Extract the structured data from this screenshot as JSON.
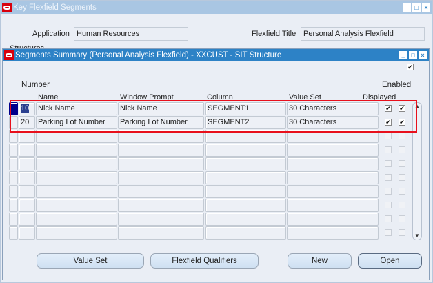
{
  "outer_window": {
    "title": "Key Flexfield Segments",
    "application_label": "Application",
    "application_value": "Human Resources",
    "flexfield_title_label": "Flexfield Title",
    "flexfield_title_value": "Personal Analysis Flexfield",
    "structures_label": "Structures"
  },
  "inner_window": {
    "title": "Segments Summary (Personal Analysis Flexfield) - XXCUST - SIT Structure",
    "headers": {
      "number": "Number",
      "name": "Name",
      "window_prompt": "Window Prompt",
      "column": "Column",
      "value_set": "Value Set",
      "displayed": "Displayed",
      "enabled": "Enabled"
    },
    "rows": [
      {
        "number": "10",
        "name": "Nick Name",
        "window_prompt": "Nick Name",
        "column": "SEGMENT1",
        "value_set": "30 Characters",
        "displayed": true,
        "enabled": true
      },
      {
        "number": "20",
        "name": "Parking Lot Number",
        "window_prompt": "Parking Lot Number",
        "column": "SEGMENT2",
        "value_set": "30 Characters",
        "displayed": true,
        "enabled": true
      },
      {},
      {},
      {},
      {},
      {},
      {},
      {},
      {}
    ],
    "buttons": {
      "value_set": "Value Set",
      "flexfield_qualifiers": "Flexfield Qualifiers",
      "new": "New",
      "open": "Open"
    }
  },
  "colors": {
    "highlight": "#e8101c",
    "title_active": "#2d82c6",
    "title_inactive": "#a9c6e3"
  }
}
